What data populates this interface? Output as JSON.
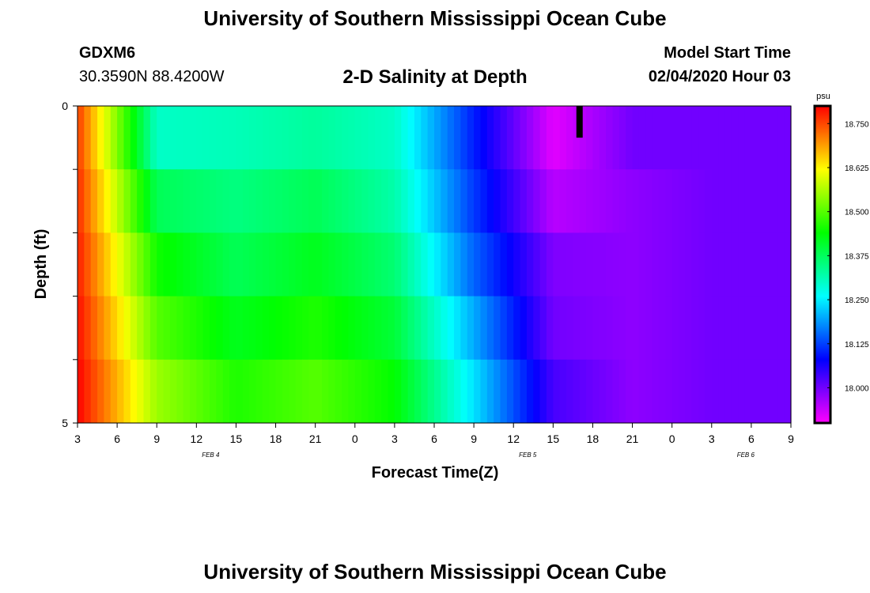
{
  "header": {
    "title": "University of Southern Mississippi Ocean Cube",
    "station": "GDXM6",
    "coords": "30.3590N 88.4200W",
    "subtitle": "2-D Salinity at Depth",
    "model_label": "Model Start Time",
    "model_start": "02/04/2020 Hour 03"
  },
  "footer": {
    "title": "University of Southern Mississippi Ocean Cube"
  },
  "chart_data": {
    "type": "heatmap",
    "title": "2-D Salinity at Depth",
    "xlabel": "Forecast Time(Z)",
    "ylabel": "Depth (ft)",
    "x_ticks": [
      "3",
      "6",
      "9",
      "12",
      "15",
      "18",
      "21",
      "0",
      "3",
      "6",
      "9",
      "12",
      "15",
      "18",
      "21",
      "0",
      "3",
      "6",
      "9"
    ],
    "date_labels": [
      {
        "label": "FEB 4",
        "at_tick": 3
      },
      {
        "label": "FEB 5",
        "at_tick": 11
      },
      {
        "label": "FEB 6",
        "at_tick": 16.5
      }
    ],
    "y_range": [
      0,
      5
    ],
    "y_tick_labels": [
      {
        "value": 0,
        "label": "0"
      },
      {
        "value": 5,
        "label": "5"
      }
    ],
    "colorbar": {
      "unit": "psu",
      "min": 17.9,
      "max": 18.8,
      "tick_labels": [
        "18.750",
        "18.625",
        "18.500",
        "18.375",
        "18.250",
        "18.125",
        "18.000"
      ],
      "tick_values": [
        18.75,
        18.625,
        18.5,
        18.375,
        18.25,
        18.125,
        18.0
      ]
    },
    "time_hours": [
      0,
      6,
      12,
      18,
      24,
      30,
      36,
      42,
      48,
      54
    ],
    "layers": [
      {
        "depth": 0.5,
        "values": [
          18.76,
          18.3,
          18.31,
          18.33,
          18.3,
          18.1,
          17.92,
          18.0,
          18.0,
          18.0
        ]
      },
      {
        "depth": 1.5,
        "values": [
          18.77,
          18.38,
          18.35,
          18.38,
          18.32,
          18.12,
          17.95,
          17.98,
          18.0,
          18.0
        ]
      },
      {
        "depth": 2.5,
        "values": [
          18.78,
          18.45,
          18.38,
          18.42,
          18.36,
          18.15,
          17.99,
          17.98,
          18.0,
          18.0
        ]
      },
      {
        "depth": 3.5,
        "values": [
          18.79,
          18.5,
          18.42,
          18.46,
          18.4,
          18.2,
          18.0,
          17.98,
          18.0,
          18.0
        ]
      },
      {
        "depth": 4.5,
        "values": [
          18.8,
          18.55,
          18.46,
          18.5,
          18.44,
          18.24,
          18.03,
          17.98,
          18.0,
          18.0
        ]
      }
    ],
    "marker": {
      "hour": 38,
      "depth_range": [
        0,
        0.5
      ],
      "color": "#000000"
    }
  }
}
